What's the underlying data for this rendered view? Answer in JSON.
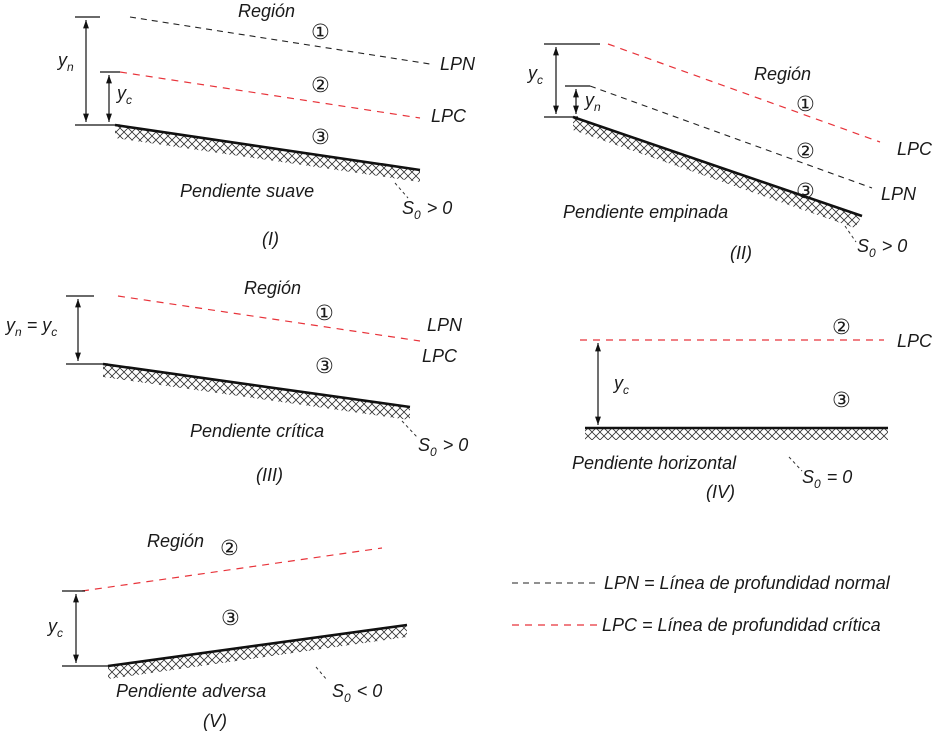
{
  "region_word": "Región",
  "lpn": "LPN",
  "lpc": "LPC",
  "circled": {
    "one": "①",
    "two": "②",
    "three": "③"
  },
  "sym": {
    "y": "y",
    "n": "n",
    "c": "c",
    "S": "S",
    "zero": "0",
    "eq": "="
  },
  "rel": {
    "gt": "> 0",
    "lt": "< 0",
    "eq0": "= 0"
  },
  "panels": {
    "p1": {
      "title": "Pendiente suave",
      "numeral": "(I)"
    },
    "p2": {
      "title": "Pendiente empinada",
      "numeral": "(II)"
    },
    "p3": {
      "title": "Pendiente crítica",
      "numeral": "(III)"
    },
    "p4": {
      "title": "Pendiente horizontal",
      "numeral": "(IV)"
    },
    "p5": {
      "title": "Pendiente adversa",
      "numeral": "(V)"
    }
  },
  "legend": {
    "lpn_desc": "LPN = Línea de profundidad normal",
    "lpc_desc": "LPC = Línea de profundidad crítica"
  },
  "colors": {
    "normal_line": "#222222",
    "critical_line": "#e8333a",
    "bed": "#111111"
  }
}
